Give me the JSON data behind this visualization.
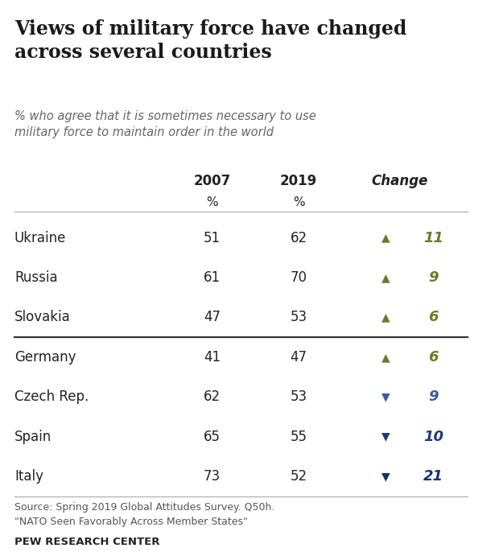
{
  "title": "Views of military force have changed\nacross several countries",
  "subtitle": "% who agree that it is sometimes necessary to use\nmilitary force to maintain order in the world",
  "col_headers": [
    "2007",
    "2019",
    "Change"
  ],
  "rows": [
    {
      "country": "Ukraine",
      "val2007": 51,
      "val2019": 62,
      "change": 11,
      "direction": "up"
    },
    {
      "country": "Russia",
      "val2007": 61,
      "val2019": 70,
      "change": 9,
      "direction": "up"
    },
    {
      "country": "Slovakia",
      "val2007": 47,
      "val2019": 53,
      "change": 6,
      "direction": "up"
    },
    {
      "country": "Germany",
      "val2007": 41,
      "val2019": 47,
      "change": 6,
      "direction": "up"
    },
    {
      "country": "Czech Rep.",
      "val2007": 62,
      "val2019": 53,
      "change": 9,
      "direction": "down"
    },
    {
      "country": "Spain",
      "val2007": 65,
      "val2019": 55,
      "change": 10,
      "direction": "down"
    },
    {
      "country": "Italy",
      "val2007": 73,
      "val2019": 52,
      "change": 21,
      "direction": "down"
    }
  ],
  "divider_after_row": 3,
  "up_color": "#6b7a2a",
  "down_color_czech": "#3a5a9a",
  "down_color_spain": "#1e3a7a",
  "down_color_italy": "#1a2f6b",
  "source_text": "Source: Spring 2019 Global Attitudes Survey. Q50h.\n\"NATO Seen Favorably Across Member States\"",
  "footer_text": "PEW RESEARCH CENTER",
  "bg_color": "#ffffff",
  "title_color": "#1a1a1a",
  "subtitle_color": "#666666",
  "body_color": "#222222"
}
